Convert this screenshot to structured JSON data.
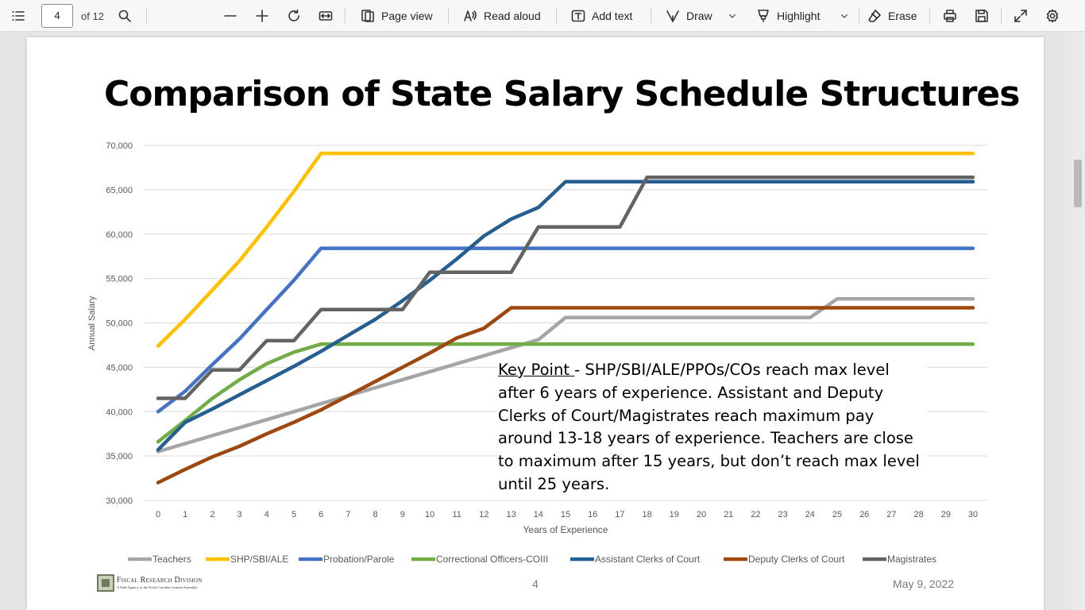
{
  "toolbar": {
    "page_number": "4",
    "page_count": "of 12",
    "page_view": "Page view",
    "read_aloud": "Read aloud",
    "add_text": "Add text",
    "draw": "Draw",
    "highlight": "Highlight",
    "erase": "Erase"
  },
  "slide": {
    "title": "Comparison of State Salary Schedule Structures",
    "key_point_label": "Key Point ",
    "key_point_text": "- SHP/SBI/ALE/PPOs/COs reach max level after 6 years of experience.  Assistant and Deputy Clerks of Court/Magistrates reach maximum pay around 13-18 years of experience.  Teachers are close to maximum after 15 years, but don’t reach max level until 25 years.",
    "footer_logo_name": "Fiscal Research Division",
    "footer_logo_tagline": "A Staff Agency of the North Carolina General Assembly",
    "footer_page": "4",
    "footer_date": "May 9, 2022"
  },
  "chart_data": {
    "type": "line",
    "title": "",
    "xlabel": "Years of Experience",
    "ylabel": "Annual Salary",
    "x": [
      0,
      1,
      2,
      3,
      4,
      5,
      6,
      7,
      8,
      9,
      10,
      11,
      12,
      13,
      14,
      15,
      16,
      17,
      18,
      19,
      20,
      21,
      22,
      23,
      24,
      25,
      26,
      27,
      28,
      29,
      30
    ],
    "ylim": [
      30000,
      70000
    ],
    "yticks": [
      30000,
      35000,
      40000,
      45000,
      50000,
      55000,
      60000,
      65000,
      70000
    ],
    "ytick_labels": [
      "30,000",
      "35,000",
      "40,000",
      "45,000",
      "50,000",
      "55,000",
      "60,000",
      "65,000",
      "70,000"
    ],
    "grid": "horizontal",
    "legend_position": "bottom",
    "series": [
      {
        "name": "Teachers",
        "color": "#a5a5a5",
        "values": [
          35500,
          36400,
          37300,
          38200,
          39100,
          40000,
          40900,
          41800,
          42700,
          43600,
          44500,
          45400,
          46300,
          47200,
          48100,
          50600,
          50600,
          50600,
          50600,
          50600,
          50600,
          50600,
          50600,
          50600,
          50600,
          52700,
          52700,
          52700,
          52700,
          52700,
          52700
        ]
      },
      {
        "name": "SHP/SBI/ALE",
        "color": "#ffc000",
        "values": [
          47400,
          50400,
          53700,
          57000,
          60800,
          64800,
          69100,
          69100,
          69100,
          69100,
          69100,
          69100,
          69100,
          69100,
          69100,
          69100,
          69100,
          69100,
          69100,
          69100,
          69100,
          69100,
          69100,
          69100,
          69100,
          69100,
          69100,
          69100,
          69100,
          69100,
          69100
        ]
      },
      {
        "name": "Probation/Parole",
        "color": "#4472c4",
        "values": [
          40000,
          42300,
          45300,
          48200,
          51500,
          54800,
          58400,
          58400,
          58400,
          58400,
          58400,
          58400,
          58400,
          58400,
          58400,
          58400,
          58400,
          58400,
          58400,
          58400,
          58400,
          58400,
          58400,
          58400,
          58400,
          58400,
          58400,
          58400,
          58400,
          58400,
          58400
        ]
      },
      {
        "name": "Correctional Officers-COIII",
        "color": "#70ad47",
        "values": [
          36600,
          39000,
          41500,
          43600,
          45400,
          46700,
          47600,
          47600,
          47600,
          47600,
          47600,
          47600,
          47600,
          47600,
          47600,
          47600,
          47600,
          47600,
          47600,
          47600,
          47600,
          47600,
          47600,
          47600,
          47600,
          47600,
          47600,
          47600,
          47600,
          47600,
          47600
        ]
      },
      {
        "name": "Assistant Clerks of Court",
        "color": "#255e91",
        "values": [
          35700,
          38800,
          40300,
          41900,
          43500,
          45100,
          46800,
          48600,
          50400,
          52500,
          54800,
          57200,
          59800,
          61700,
          63000,
          65900,
          65900,
          65900,
          65900,
          65900,
          65900,
          65900,
          65900,
          65900,
          65900,
          65900,
          65900,
          65900,
          65900,
          65900,
          65900
        ]
      },
      {
        "name": "Deputy Clerks of Court",
        "color": "#9e480e",
        "values": [
          32000,
          33500,
          34900,
          36100,
          37500,
          38800,
          40200,
          41800,
          43400,
          45000,
          46600,
          48300,
          49400,
          51700,
          51700,
          51700,
          51700,
          51700,
          51700,
          51700,
          51700,
          51700,
          51700,
          51700,
          51700,
          51700,
          51700,
          51700,
          51700,
          51700,
          51700
        ]
      },
      {
        "name": "Magistrates",
        "color": "#636363",
        "values": [
          41500,
          41500,
          44700,
          44700,
          48000,
          48000,
          51500,
          51500,
          51500,
          51500,
          55700,
          55700,
          55700,
          55700,
          60800,
          60800,
          60800,
          60800,
          66400,
          66400,
          66400,
          66400,
          66400,
          66400,
          66400,
          66400,
          66400,
          66400,
          66400,
          66400,
          66400
        ]
      }
    ]
  }
}
